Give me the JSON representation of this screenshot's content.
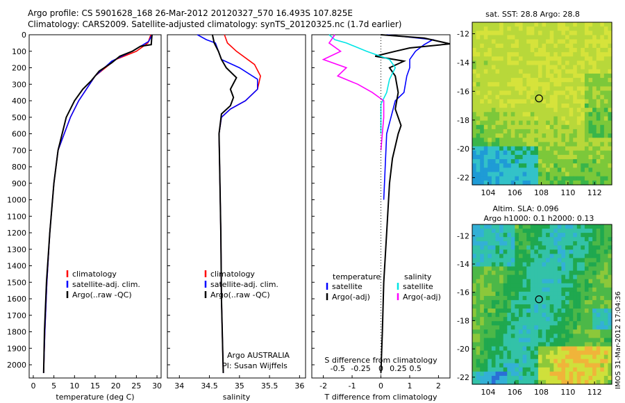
{
  "header": {
    "line1": "Argo profile: CS 5901628_168 26-Mar-2012 20120327_570 16.493S 107.825E",
    "line2": "Climatology: CARS2009. Satellite-adjusted climatology: synTS_20120325.nc (1.7d earlier)"
  },
  "footer_stamp": "IMOS 31-Mar-2012 17:04:36",
  "chart_data": [
    {
      "type": "line",
      "id": "temperature",
      "xlabel": "temperature (deg C)",
      "ylabel": "",
      "xlim": [
        -1,
        31
      ],
      "ylim": [
        2080,
        0
      ],
      "xticks": [
        0,
        5,
        10,
        15,
        20,
        25,
        30
      ],
      "yticks": [
        0,
        100,
        200,
        300,
        400,
        500,
        600,
        700,
        800,
        900,
        1000,
        1100,
        1200,
        1300,
        1400,
        1500,
        1600,
        1700,
        1800,
        1900,
        2000
      ],
      "legend": [
        "climatology",
        "satellite-adj. clim.",
        "Argo(..raw -QC)"
      ],
      "legend_position": "lower-middle",
      "series": [
        {
          "name": "climatology",
          "color": "#ff0000",
          "points": [
            [
              28.5,
              0
            ],
            [
              27.8,
              50
            ],
            [
              25,
              100
            ],
            [
              20,
              150
            ],
            [
              15,
              250
            ],
            [
              11,
              400
            ],
            [
              9,
              500
            ],
            [
              7.5,
              600
            ],
            [
              6,
              700
            ],
            [
              5,
              900
            ],
            [
              4,
              1200
            ],
            [
              3.3,
              1500
            ],
            [
              2.8,
              1800
            ],
            [
              2.5,
              2050
            ]
          ]
        },
        {
          "name": "satellite-adj. clim.",
          "color": "#0000ff",
          "points": [
            [
              28.8,
              0
            ],
            [
              28,
              40
            ],
            [
              24,
              100
            ],
            [
              19,
              160
            ],
            [
              15,
              250
            ],
            [
              11,
              400
            ],
            [
              9,
              500
            ],
            [
              7.5,
              600
            ],
            [
              6,
              700
            ],
            [
              5,
              900
            ],
            [
              4,
              1200
            ],
            [
              3.3,
              1500
            ],
            [
              2.8,
              1800
            ],
            [
              2.5,
              2050
            ]
          ]
        },
        {
          "name": "Argo(..raw -QC)",
          "color": "#000000",
          "points": [
            [
              28.8,
              0
            ],
            [
              28.7,
              30
            ],
            [
              28.6,
              60
            ],
            [
              26,
              70
            ],
            [
              24,
              100
            ],
            [
              21,
              130
            ],
            [
              19,
              170
            ],
            [
              16,
              220
            ],
            [
              14,
              280
            ],
            [
              12,
              330
            ],
            [
              10,
              400
            ],
            [
              8,
              500
            ],
            [
              7,
              600
            ],
            [
              6,
              700
            ],
            [
              5,
              900
            ],
            [
              4,
              1200
            ],
            [
              3.2,
              1500
            ],
            [
              2.7,
              1800
            ],
            [
              2.5,
              2050
            ]
          ]
        }
      ]
    },
    {
      "type": "line",
      "id": "salinity",
      "xlabel": "salinity",
      "ylabel": "",
      "xlim": [
        33.8,
        36.1
      ],
      "ylim": [
        2080,
        0
      ],
      "xticks": [
        34,
        34.5,
        35,
        35.5,
        36
      ],
      "legend": [
        "climatology",
        "satellite-adj. clim.",
        "Argo(..raw -QC)"
      ],
      "legend_position": "lower-middle",
      "annotation": [
        "Argo AUSTRALIA",
        "PI: Susan Wijffels"
      ],
      "series": [
        {
          "name": "climatology",
          "color": "#ff0000",
          "points": [
            [
              34.75,
              0
            ],
            [
              34.8,
              50
            ],
            [
              34.95,
              100
            ],
            [
              35.25,
              180
            ],
            [
              35.35,
              250
            ],
            [
              35.3,
              330
            ],
            [
              35.1,
              400
            ],
            [
              34.85,
              450
            ],
            [
              34.7,
              500
            ],
            [
              34.66,
              600
            ],
            [
              34.67,
              800
            ],
            [
              34.69,
              1200
            ],
            [
              34.7,
              1600
            ],
            [
              34.73,
              2050
            ]
          ]
        },
        {
          "name": "satellite-adj. clim.",
          "color": "#0000ff",
          "points": [
            [
              34.3,
              0
            ],
            [
              34.45,
              30
            ],
            [
              34.6,
              50
            ],
            [
              34.7,
              150
            ],
            [
              35.0,
              200
            ],
            [
              35.3,
              270
            ],
            [
              35.3,
              330
            ],
            [
              35.1,
              400
            ],
            [
              34.85,
              450
            ],
            [
              34.7,
              500
            ],
            [
              34.66,
              600
            ],
            [
              34.67,
              800
            ],
            [
              34.69,
              1200
            ],
            [
              34.7,
              1600
            ],
            [
              34.73,
              2050
            ]
          ]
        },
        {
          "name": "Argo(..raw -QC)",
          "color": "#000000",
          "points": [
            [
              34.55,
              0
            ],
            [
              34.58,
              50
            ],
            [
              34.65,
              100
            ],
            [
              34.7,
              150
            ],
            [
              34.78,
              200
            ],
            [
              34.95,
              260
            ],
            [
              34.85,
              330
            ],
            [
              34.9,
              380
            ],
            [
              34.85,
              430
            ],
            [
              34.7,
              480
            ],
            [
              34.66,
              600
            ],
            [
              34.67,
              800
            ],
            [
              34.69,
              1200
            ],
            [
              34.7,
              1600
            ],
            [
              34.73,
              2050
            ]
          ]
        }
      ]
    },
    {
      "type": "line",
      "id": "differences",
      "xlabel": "T difference from climatology",
      "xlabel_top": "S difference from climatology",
      "xlim": [
        -2.4,
        2.4
      ],
      "ylim": [
        2080,
        0
      ],
      "xticks": [
        -2,
        -1,
        0,
        1,
        2
      ],
      "xticks_secondary": [
        "-0.5",
        "-0.25",
        "0",
        "0.25",
        "0.5"
      ],
      "legend_temperature_title": "temperature",
      "legend_salinity_title": "salinity",
      "legend": [
        "satellite",
        "Argo(-adj)",
        "satellite",
        "Argo(-adj)"
      ],
      "legend_position": "lower-middle",
      "series": [
        {
          "name": "satellite",
          "group": "temperature",
          "color": "#0000ff",
          "points": [
            [
              0.2,
              0
            ],
            [
              1.8,
              30
            ],
            [
              1.5,
              60
            ],
            [
              1.2,
              100
            ],
            [
              1.0,
              150
            ],
            [
              1.0,
              200
            ],
            [
              0.9,
              250
            ],
            [
              0.8,
              350
            ],
            [
              0.5,
              400
            ],
            [
              0.2,
              600
            ],
            [
              0.1,
              1000
            ]
          ]
        },
        {
          "name": "Argo(-adj)",
          "group": "temperature",
          "color": "#000000",
          "points": [
            [
              0,
              0
            ],
            [
              1.5,
              20
            ],
            [
              2.4,
              55
            ],
            [
              1.0,
              80
            ],
            [
              0.5,
              100
            ],
            [
              -0.2,
              130
            ],
            [
              0.8,
              160
            ],
            [
              0.3,
              200
            ],
            [
              0.5,
              250
            ],
            [
              0.6,
              350
            ],
            [
              0.5,
              450
            ],
            [
              0.7,
              550
            ],
            [
              0.6,
              600
            ],
            [
              0.4,
              750
            ],
            [
              0.3,
              900
            ],
            [
              0.2,
              1200
            ],
            [
              0.1,
              1500
            ],
            [
              0.05,
              1800
            ],
            [
              0,
              2050
            ]
          ]
        },
        {
          "name": "satellite",
          "group": "salinity",
          "color": "#00e5e5",
          "points": [
            [
              -1.8,
              0
            ],
            [
              -1.6,
              30
            ],
            [
              -1.2,
              50
            ],
            [
              -0.5,
              100
            ],
            [
              0.3,
              150
            ],
            [
              0.5,
              200
            ],
            [
              0.3,
              270
            ],
            [
              0.2,
              350
            ],
            [
              0.0,
              420
            ],
            [
              0.0,
              600
            ]
          ]
        },
        {
          "name": "Argo(-adj)",
          "group": "salinity",
          "color": "#ff00ff",
          "points": [
            [
              -1.6,
              0
            ],
            [
              -1.8,
              50
            ],
            [
              -1.4,
              100
            ],
            [
              -2.0,
              150
            ],
            [
              -1.2,
              200
            ],
            [
              -1.5,
              250
            ],
            [
              -0.8,
              300
            ],
            [
              -0.3,
              350
            ],
            [
              0.1,
              400
            ],
            [
              0.1,
              500
            ],
            [
              0.0,
              700
            ]
          ]
        }
      ]
    },
    {
      "type": "heatmap",
      "id": "sst-map",
      "title": "sat. SST: 28.8  Argo: 28.8",
      "xticks": [
        104,
        106,
        108,
        110,
        112
      ],
      "yticks": [
        -12,
        -14,
        -16,
        -18,
        -20,
        -22
      ],
      "xlim": [
        102.8,
        113.3
      ],
      "ylim": [
        -22.5,
        -11.2
      ],
      "marker": {
        "lon": 107.825,
        "lat": -16.493
      }
    },
    {
      "type": "heatmap",
      "id": "sla-map",
      "title": "Altim. SLA: 0.096",
      "subtitle": "Argo h1000: 0.1  h2000: 0.13",
      "xticks": [
        104,
        106,
        108,
        110,
        112
      ],
      "yticks": [
        -12,
        -14,
        -16,
        -18,
        -20,
        -22
      ],
      "xlim": [
        102.8,
        113.3
      ],
      "ylim": [
        -22.5,
        -11.2
      ],
      "marker": {
        "lon": 107.825,
        "lat": -16.493
      }
    }
  ]
}
